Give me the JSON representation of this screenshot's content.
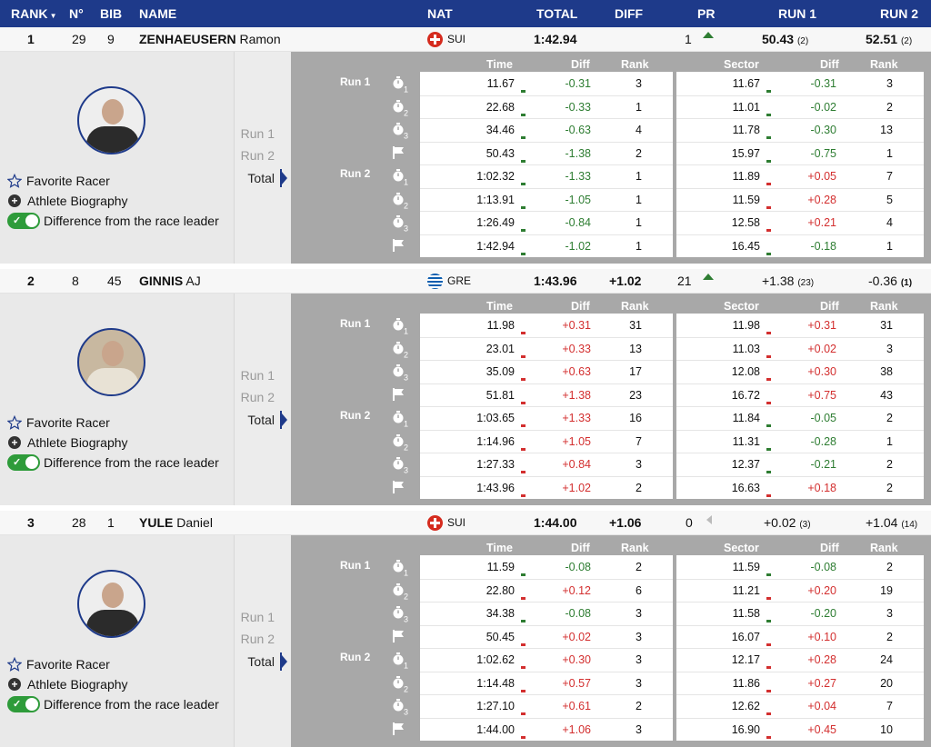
{
  "header": {
    "rank": "RANK",
    "no": "N°",
    "bib": "BIB",
    "name": "NAME",
    "nat": "NAT",
    "total": "TOTAL",
    "diff": "DIFF",
    "pr": "PR",
    "run1": "RUN 1",
    "run2": "RUN 2"
  },
  "columns": {
    "time": "Time",
    "diff": "Diff",
    "rank": "Rank",
    "sector": "Sector"
  },
  "labels": {
    "run1": "Run 1",
    "run2": "Run 2",
    "total": "Total",
    "favorite": "Favorite Racer",
    "bio": "Athlete Biography",
    "diff_toggle": "Difference from the race leader"
  },
  "racers": [
    {
      "rank": "1",
      "no": "29",
      "bib": "9",
      "last": "ZENHAEUSERN",
      "first": "Ramon",
      "nat": "SUI",
      "total": "1:42.94",
      "diff": "",
      "pr": "1",
      "run1": "50.43",
      "run1_rank": "(2)",
      "run2": "52.51",
      "run2_rank": "(2)",
      "splits": [
        {
          "time": "11.67",
          "diff": "-0.31",
          "rank": "3",
          "sector": "11.67",
          "sdiff": "-0.31",
          "srank": "3"
        },
        {
          "time": "22.68",
          "diff": "-0.33",
          "rank": "1",
          "sector": "11.01",
          "sdiff": "-0.02",
          "srank": "2"
        },
        {
          "time": "34.46",
          "diff": "-0.63",
          "rank": "4",
          "sector": "11.78",
          "sdiff": "-0.30",
          "srank": "13"
        },
        {
          "time": "50.43",
          "diff": "-1.38",
          "rank": "2",
          "sector": "15.97",
          "sdiff": "-0.75",
          "srank": "1"
        },
        {
          "time": "1:02.32",
          "diff": "-1.33",
          "rank": "1",
          "sector": "11.89",
          "sdiff": "+0.05",
          "srank": "7"
        },
        {
          "time": "1:13.91",
          "diff": "-1.05",
          "rank": "1",
          "sector": "11.59",
          "sdiff": "+0.28",
          "srank": "5"
        },
        {
          "time": "1:26.49",
          "diff": "-0.84",
          "rank": "1",
          "sector": "12.58",
          "sdiff": "+0.21",
          "srank": "4"
        },
        {
          "time": "1:42.94",
          "diff": "-1.02",
          "rank": "1",
          "sector": "16.45",
          "sdiff": "-0.18",
          "srank": "1"
        }
      ]
    },
    {
      "rank": "2",
      "no": "8",
      "bib": "45",
      "last": "GINNIS",
      "first": "AJ",
      "nat": "GRE",
      "total": "1:43.96",
      "diff": "+1.02",
      "pr": "21",
      "run1": "+1.38",
      "run1_rank": "(23)",
      "run2": "-0.36",
      "run2_rank": "(1)",
      "splits": [
        {
          "time": "11.98",
          "diff": "+0.31",
          "rank": "31",
          "sector": "11.98",
          "sdiff": "+0.31",
          "srank": "31"
        },
        {
          "time": "23.01",
          "diff": "+0.33",
          "rank": "13",
          "sector": "11.03",
          "sdiff": "+0.02",
          "srank": "3"
        },
        {
          "time": "35.09",
          "diff": "+0.63",
          "rank": "17",
          "sector": "12.08",
          "sdiff": "+0.30",
          "srank": "38"
        },
        {
          "time": "51.81",
          "diff": "+1.38",
          "rank": "23",
          "sector": "16.72",
          "sdiff": "+0.75",
          "srank": "43"
        },
        {
          "time": "1:03.65",
          "diff": "+1.33",
          "rank": "16",
          "sector": "11.84",
          "sdiff": "-0.05",
          "srank": "2"
        },
        {
          "time": "1:14.96",
          "diff": "+1.05",
          "rank": "7",
          "sector": "11.31",
          "sdiff": "-0.28",
          "srank": "1"
        },
        {
          "time": "1:27.33",
          "diff": "+0.84",
          "rank": "3",
          "sector": "12.37",
          "sdiff": "-0.21",
          "srank": "2"
        },
        {
          "time": "1:43.96",
          "diff": "+1.02",
          "rank": "2",
          "sector": "16.63",
          "sdiff": "+0.18",
          "srank": "2"
        }
      ]
    },
    {
      "rank": "3",
      "no": "28",
      "bib": "1",
      "last": "YULE",
      "first": "Daniel",
      "nat": "SUI",
      "total": "1:44.00",
      "diff": "+1.06",
      "pr": "0",
      "run1": "+0.02",
      "run1_rank": "(3)",
      "run2": "+1.04",
      "run2_rank": "(14)",
      "splits": [
        {
          "time": "11.59",
          "diff": "-0.08",
          "rank": "2",
          "sector": "11.59",
          "sdiff": "-0.08",
          "srank": "2"
        },
        {
          "time": "22.80",
          "diff": "+0.12",
          "rank": "6",
          "sector": "11.21",
          "sdiff": "+0.20",
          "srank": "19"
        },
        {
          "time": "34.38",
          "diff": "-0.08",
          "rank": "3",
          "sector": "11.58",
          "sdiff": "-0.20",
          "srank": "3"
        },
        {
          "time": "50.45",
          "diff": "+0.02",
          "rank": "3",
          "sector": "16.07",
          "sdiff": "+0.10",
          "srank": "2"
        },
        {
          "time": "1:02.62",
          "diff": "+0.30",
          "rank": "3",
          "sector": "12.17",
          "sdiff": "+0.28",
          "srank": "24"
        },
        {
          "time": "1:14.48",
          "diff": "+0.57",
          "rank": "3",
          "sector": "11.86",
          "sdiff": "+0.27",
          "srank": "20"
        },
        {
          "time": "1:27.10",
          "diff": "+0.61",
          "rank": "2",
          "sector": "12.62",
          "sdiff": "+0.04",
          "srank": "7"
        },
        {
          "time": "1:44.00",
          "diff": "+1.06",
          "rank": "3",
          "sector": "16.90",
          "sdiff": "+0.45",
          "srank": "10"
        }
      ]
    }
  ]
}
